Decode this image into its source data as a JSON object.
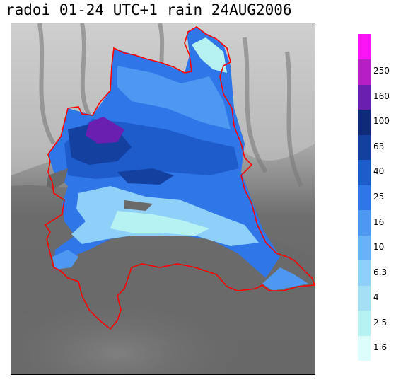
{
  "title": "radoi 01-24 UTC+1 rain 24AUG2006",
  "legend": {
    "levels": [
      {
        "color": "#ddfcfc",
        "label": "1.6"
      },
      {
        "color": "#b6f2f2",
        "label": "2.5"
      },
      {
        "color": "#a3dff5",
        "label": "4"
      },
      {
        "color": "#8fd0f8",
        "label": "6.3"
      },
      {
        "color": "#6ab2f7",
        "label": "10"
      },
      {
        "color": "#4e98f2",
        "label": "16"
      },
      {
        "color": "#2f76e8",
        "label": "25"
      },
      {
        "color": "#1f5ccb",
        "label": "40"
      },
      {
        "color": "#1440a0",
        "label": "63"
      },
      {
        "color": "#0e2a78",
        "label": "100"
      },
      {
        "color": "#6a1fb0",
        "label": "160"
      },
      {
        "color": "#b51fc4",
        "label": "250"
      },
      {
        "color": "#fa14f5",
        "label": ""
      }
    ]
  },
  "map": {
    "boundary_color": "#ff0000",
    "background_color": "#6a6a6a",
    "terrain_light": "#d8d8d8"
  }
}
